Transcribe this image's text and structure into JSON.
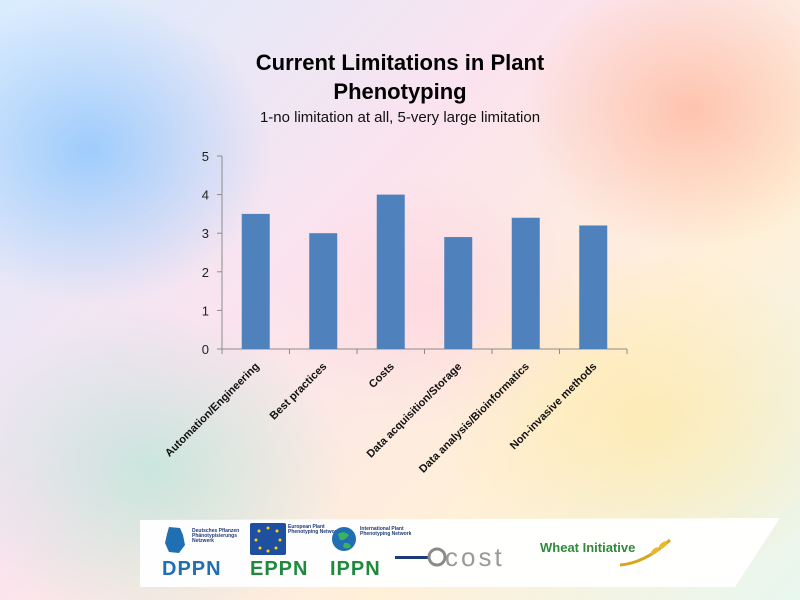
{
  "slide": {
    "title_line1": "Current Limitations in Plant",
    "title_line2": "Phenotyping",
    "subtitle": "1-no limitation at all, 5-very large limitation"
  },
  "chart_data": {
    "type": "bar",
    "title": "Current Limitations in Plant Phenotyping",
    "subtitle": "1-no limitation at all, 5-very large limitation",
    "categories": [
      "Automation/Engineering",
      "Best practices",
      "Costs",
      "Data acquisition/Storage",
      "Data analysis/Bioinformatics",
      "Non-invasive methods"
    ],
    "values": [
      3.5,
      3.0,
      4.0,
      2.9,
      3.4,
      3.2
    ],
    "ylim": [
      0,
      5
    ],
    "yticks": [
      0,
      1,
      2,
      3,
      4,
      5
    ],
    "xlabel": "",
    "ylabel": "",
    "grid": false,
    "legend": "none",
    "bar_color": "#4f81bd"
  },
  "footer": {
    "logos": [
      {
        "name": "DPPN",
        "small_text": "Deutsches Pflanzen Phänotypisierungs Netzwerk",
        "color": "#1f6fb2"
      },
      {
        "name": "EPPN",
        "small_text": "European Plant Phenotyping Network",
        "color": "#1f8a3c"
      },
      {
        "name": "IPPN",
        "small_text": "International Plant Phenotyping Network",
        "color": "#1f8a3c"
      },
      {
        "name": "cost",
        "small_text": "",
        "color": "#8a8a8a"
      },
      {
        "name": "Wheat Initiative",
        "small_text": "",
        "color": "#2e8b3a"
      }
    ]
  }
}
